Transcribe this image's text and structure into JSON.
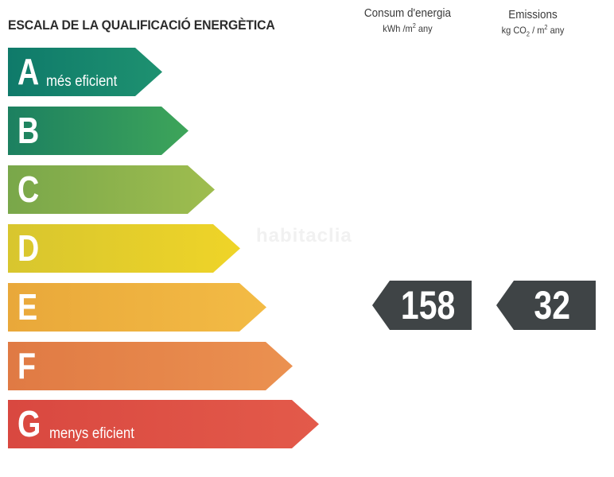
{
  "title": "ESCALA DE LA QUALIFICACIÓ ENERGÈTICA",
  "energy_column": {
    "heading": "Consum d'energia",
    "unit_base": "kWh /m",
    "unit_exp": "2",
    "unit_suffix": " any"
  },
  "emissions_column": {
    "heading": "Emissions",
    "unit_base": "kg CO",
    "unit_sub": "2",
    "unit_mid": " / m",
    "unit_exp": "2",
    "unit_suffix": " any"
  },
  "ratings": [
    {
      "letter": "A",
      "label": "més eficient",
      "color": "#1b8a6b"
    },
    {
      "letter": "B",
      "label": "",
      "color": "#2f9a5d"
    },
    {
      "letter": "C",
      "label": "",
      "color": "#8fb34b"
    },
    {
      "letter": "D",
      "label": "",
      "color": "#e6cc2a"
    },
    {
      "letter": "E",
      "label": "",
      "color": "#efb13f"
    },
    {
      "letter": "F",
      "label": "",
      "color": "#e58447"
    },
    {
      "letter": "G",
      "label": "menys eficient",
      "color": "#df4f45"
    }
  ],
  "current_rating": "E",
  "energy_value": "158",
  "emissions_value": "32",
  "watermark": "habitaclia"
}
